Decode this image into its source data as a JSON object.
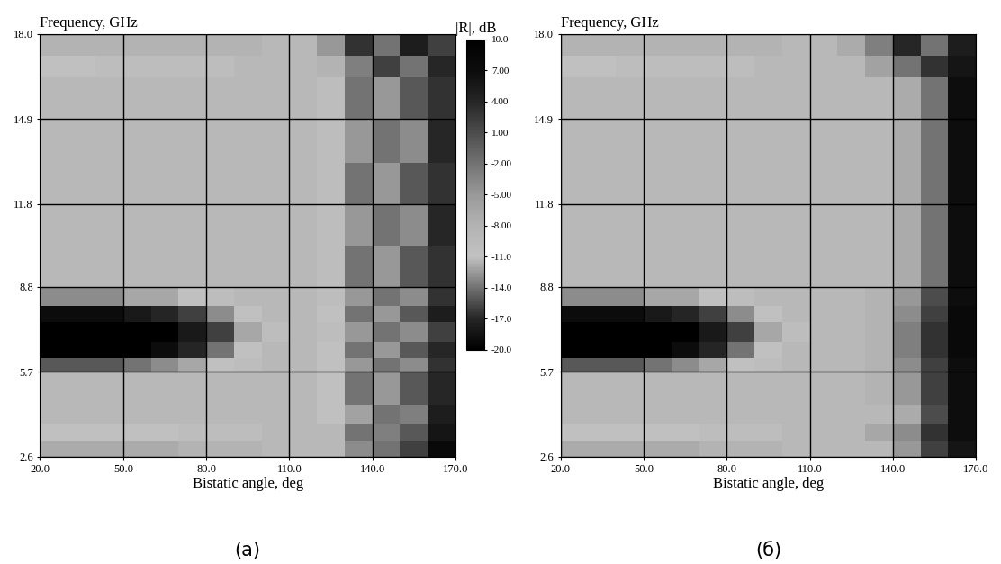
{
  "chart_data": [
    {
      "type": "heatmap",
      "title": "Frequency, GHz",
      "xlabel": "Bistatic angle, deg",
      "caption": "(a)",
      "xlim": [
        20,
        170
      ],
      "ylim": [
        2.6,
        18.0
      ],
      "xticks": [
        {
          "value": 20,
          "label": "20.0"
        },
        {
          "value": 50,
          "label": "50.0"
        },
        {
          "value": 80,
          "label": "80.0"
        },
        {
          "value": 110,
          "label": "110.0"
        },
        {
          "value": 140,
          "label": "140.0"
        },
        {
          "value": 170,
          "label": "170.0"
        }
      ],
      "yticks": [
        2.6,
        5.7,
        8.8,
        11.8,
        14.9,
        {
          "value": 18.0,
          "label": "18.0"
        }
      ],
      "grid": true,
      "x_edges": [
        20,
        30,
        40,
        50,
        60,
        70,
        80,
        90,
        100,
        110,
        120,
        130,
        140,
        150,
        160,
        170
      ],
      "y_edges": [
        2.6,
        3.2,
        3.8,
        4.5,
        5.7,
        6.2,
        6.8,
        7.5,
        8.1,
        8.8,
        10.3,
        11.8,
        13.3,
        14.9,
        16.4,
        17.2,
        18.0
      ],
      "cells": [
        [
          -7,
          -7,
          -7,
          -7,
          -7,
          -8,
          -8,
          -8,
          -9,
          -9,
          -9,
          -4,
          -14,
          2,
          8
        ],
        [
          -11,
          -11,
          -11,
          -11,
          -11,
          -10,
          -10,
          -10,
          -9,
          -9,
          -9,
          -14,
          -3,
          -15,
          6
        ],
        [
          -9,
          -9,
          -9,
          -9,
          -9,
          -9,
          -9,
          -9,
          -9,
          -9,
          -11,
          -6,
          -14,
          -3,
          5
        ],
        [
          -9,
          -9,
          -9,
          -9,
          -9,
          -9,
          -9,
          -9,
          -9,
          -9,
          -11,
          -14,
          -5,
          -15,
          4
        ],
        [
          -15,
          -15,
          -15,
          -14,
          -13,
          -12,
          -11,
          -10,
          -9,
          -9,
          -11,
          -5,
          -14,
          -4,
          3
        ],
        [
          -20,
          -20,
          -20,
          -20,
          -19,
          -17,
          -14,
          -11,
          -9,
          -9,
          -11,
          -14,
          -5,
          -15,
          4
        ],
        [
          -20,
          -20,
          -20,
          -20,
          -20,
          -18,
          -16,
          -12,
          -10,
          -9,
          -10,
          -5,
          -14,
          -4,
          2
        ],
        [
          -19,
          -19,
          -19,
          -18,
          -17,
          -16,
          -13,
          -11,
          -9,
          -9,
          -11,
          -14,
          -5,
          -15,
          5
        ],
        [
          -13,
          -13,
          -13,
          -12,
          -12,
          -11,
          -10,
          -9,
          -9,
          -9,
          -10,
          -5,
          -14,
          -4,
          3
        ],
        [
          -9,
          -9,
          -9,
          -9,
          -9,
          -9,
          -9,
          -9,
          -9,
          -9,
          -10,
          -14,
          -5,
          -15,
          3
        ],
        [
          -9,
          -9,
          -9,
          -9,
          -9,
          -9,
          -9,
          -9,
          -9,
          -9,
          -10,
          -5,
          -14,
          -4,
          4
        ],
        [
          -9,
          -9,
          -9,
          -9,
          -9,
          -9,
          -9,
          -9,
          -9,
          -9,
          -10,
          -14,
          -5,
          -15,
          3
        ],
        [
          -9,
          -9,
          -9,
          -9,
          -9,
          -9,
          -9,
          -9,
          -9,
          -9,
          -10,
          -5,
          -14,
          -4,
          4
        ],
        [
          -9,
          -9,
          -9,
          -9,
          -9,
          -9,
          -9,
          -9,
          -9,
          -9,
          -10,
          -14,
          -5,
          -15,
          3
        ],
        [
          -11,
          -11,
          -10,
          -10,
          -10,
          -10,
          -10,
          -9,
          -9,
          -9,
          -8,
          -3,
          2,
          -14,
          4
        ],
        [
          -8,
          -8,
          -8,
          -8,
          -8,
          -8,
          -8,
          -8,
          -9,
          -9,
          -5,
          3,
          -14,
          5,
          2
        ]
      ],
      "colorbar": {
        "label": "|R|, dB",
        "range": [
          -20,
          10
        ],
        "ticks": [
          {
            "value": 10,
            "label": "10.0"
          },
          {
            "value": 7,
            "label": "7.00"
          },
          {
            "value": 4,
            "label": "4.00"
          },
          {
            "value": 1,
            "label": "1.00"
          },
          {
            "value": -2,
            "label": "-2.00"
          },
          {
            "value": -5,
            "label": "-5.00"
          },
          {
            "value": -8,
            "label": "-8.00"
          },
          {
            "value": -11,
            "label": "-11.0"
          },
          {
            "value": -14,
            "label": "-14.0"
          },
          {
            "value": -17,
            "label": "-17.0"
          },
          {
            "value": -20,
            "label": "-20.0"
          }
        ]
      }
    },
    {
      "type": "heatmap",
      "title": "Frequency, GHz",
      "xlabel": "Bistatic angle, deg",
      "caption": "(б)",
      "xlim": [
        20,
        170
      ],
      "ylim": [
        2.6,
        18.0
      ],
      "xticks": [
        {
          "value": 20,
          "label": "20.0"
        },
        {
          "value": 50,
          "label": "50.0"
        },
        {
          "value": 80,
          "label": "80.0"
        },
        {
          "value": 110,
          "label": "110.0"
        },
        {
          "value": 140,
          "label": "140.0"
        },
        {
          "value": 170,
          "label": "170.0"
        }
      ],
      "yticks": [
        2.6,
        5.7,
        8.8,
        11.8,
        14.9,
        {
          "value": 18.0,
          "label": "18.0"
        }
      ],
      "grid": true,
      "x_edges": [
        20,
        30,
        40,
        50,
        60,
        70,
        80,
        90,
        100,
        110,
        120,
        130,
        140,
        150,
        160,
        170
      ],
      "y_edges": [
        2.6,
        3.2,
        3.8,
        4.5,
        5.7,
        6.2,
        6.8,
        7.5,
        8.1,
        8.8,
        10.3,
        11.8,
        13.3,
        14.9,
        16.4,
        17.2,
        18.0
      ],
      "cells": [
        [
          -7,
          -7,
          -7,
          -7,
          -7,
          -8,
          -8,
          -8,
          -9,
          -9,
          -9,
          -9,
          -5,
          2,
          6
        ],
        [
          -11,
          -11,
          -11,
          -11,
          -11,
          -10,
          -10,
          -10,
          -9,
          -9,
          -9,
          -12,
          -4,
          3,
          7
        ],
        [
          -9,
          -9,
          -9,
          -9,
          -9,
          -9,
          -9,
          -9,
          -9,
          -9,
          -9,
          -9,
          -7,
          1,
          7
        ],
        [
          -9,
          -9,
          -9,
          -9,
          -9,
          -9,
          -9,
          -9,
          -9,
          -9,
          -9,
          -8,
          -5,
          2,
          7
        ],
        [
          -15,
          -15,
          -15,
          -14,
          -13,
          -12,
          -11,
          -10,
          -9,
          -9,
          -9,
          -8,
          -4,
          2,
          7
        ],
        [
          -20,
          -20,
          -20,
          -20,
          -19,
          -17,
          -14,
          -11,
          -9,
          -9,
          -9,
          -8,
          -3,
          3,
          8
        ],
        [
          -20,
          -20,
          -20,
          -20,
          -20,
          -18,
          -16,
          -12,
          -10,
          -9,
          -9,
          -8,
          -3,
          3,
          8
        ],
        [
          -19,
          -19,
          -19,
          -18,
          -17,
          -16,
          -13,
          -11,
          -9,
          -9,
          -9,
          -8,
          -4,
          2,
          8
        ],
        [
          -13,
          -13,
          -13,
          -12,
          -12,
          -11,
          -10,
          -9,
          -9,
          -9,
          -9,
          -8,
          -5,
          1,
          7
        ],
        [
          -9,
          -9,
          -9,
          -9,
          -9,
          -9,
          -9,
          -9,
          -9,
          -9,
          -9,
          -9,
          -7,
          -2,
          7
        ],
        [
          -9,
          -9,
          -9,
          -9,
          -9,
          -9,
          -9,
          -9,
          -9,
          -9,
          -9,
          -9,
          -7,
          -2,
          7
        ],
        [
          -9,
          -9,
          -9,
          -9,
          -9,
          -9,
          -9,
          -9,
          -9,
          -9,
          -9,
          -9,
          -7,
          -2,
          7
        ],
        [
          -9,
          -9,
          -9,
          -9,
          -9,
          -9,
          -9,
          -9,
          -9,
          -9,
          -9,
          -9,
          -7,
          -2,
          7
        ],
        [
          -9,
          -9,
          -9,
          -9,
          -9,
          -9,
          -9,
          -9,
          -9,
          -9,
          -9,
          -9,
          -7,
          -2,
          7
        ],
        [
          -11,
          -11,
          -10,
          -10,
          -10,
          -10,
          -10,
          -9,
          -9,
          -9,
          -9,
          -6,
          -2,
          3,
          6
        ],
        [
          -8,
          -8,
          -8,
          -8,
          -8,
          -8,
          -8,
          -8,
          -9,
          -9,
          -7,
          -3,
          4,
          -14,
          5
        ]
      ]
    }
  ]
}
